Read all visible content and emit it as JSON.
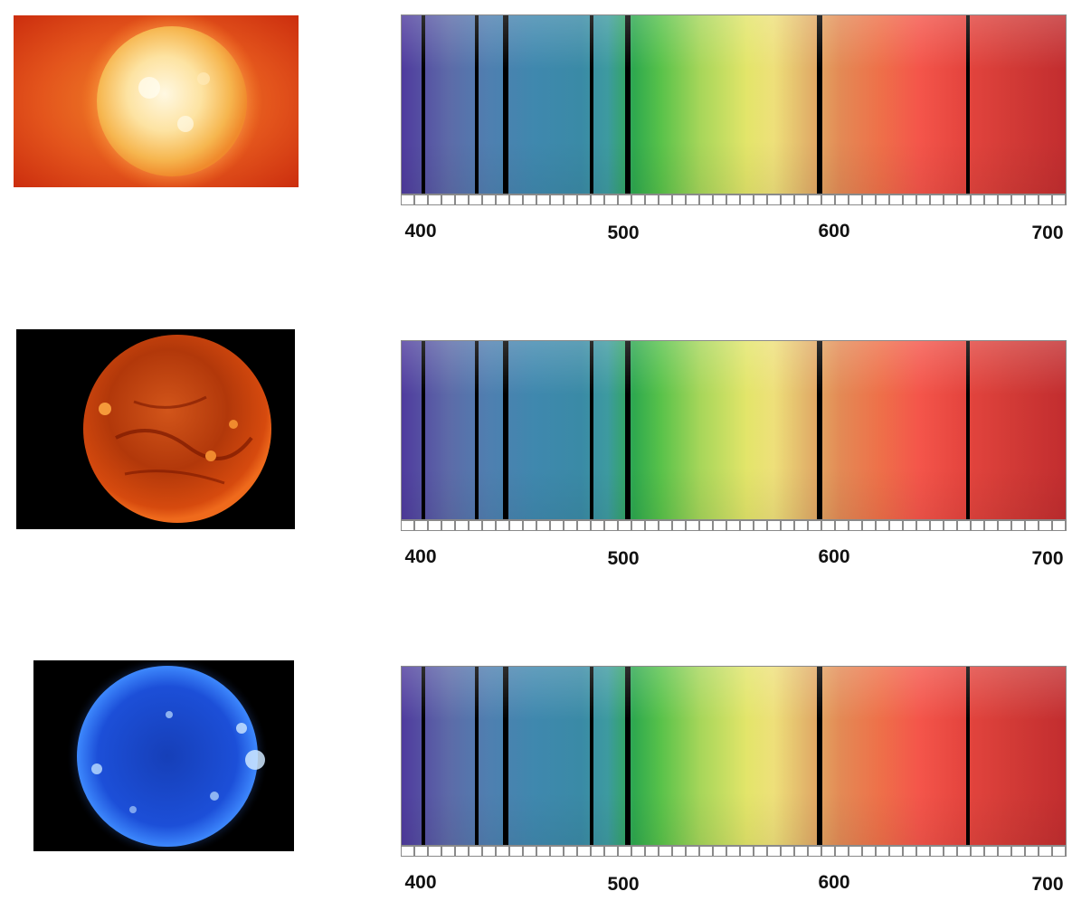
{
  "rows": [
    {
      "image": "sun-visible-light",
      "colors": {
        "core": "#fff6d8",
        "mid": "#f7a33a",
        "edge": "#e8501b",
        "background": "#d4300f"
      }
    },
    {
      "image": "sun-red-filter",
      "colors": {
        "core": "#e46b1a",
        "mid": "#b83508",
        "edge": "#7a1600",
        "background": "#000000"
      }
    },
    {
      "image": "sun-blue-uv",
      "colors": {
        "core": "#2e6bff",
        "mid": "#1239c9",
        "edge": "#6fb6ff",
        "background": "#000000"
      }
    }
  ],
  "spectrum": {
    "axis_range_nm": [
      400,
      700
    ],
    "tick_labels": [
      "400",
      "500",
      "600",
      "700"
    ],
    "absorption_lines_nm": [
      410,
      434,
      447,
      486,
      502,
      589,
      656
    ]
  }
}
